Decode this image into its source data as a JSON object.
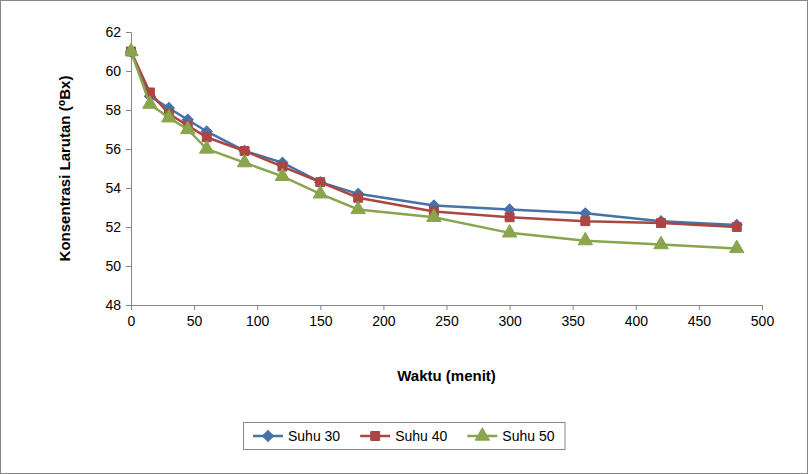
{
  "chart_data": {
    "type": "line",
    "x_label": "Waktu (menit)",
    "y_label": "Konsentrasi Larutan  (⁰Bx)",
    "x": [
      0,
      15,
      30,
      45,
      60,
      90,
      120,
      150,
      180,
      240,
      300,
      360,
      420,
      480
    ],
    "series": [
      {
        "name": "Suhu 30",
        "color": "#4572A7",
        "marker": "diamond",
        "line_style": "solid",
        "values": [
          61.0,
          58.7,
          58.1,
          57.5,
          56.9,
          55.9,
          55.3,
          54.3,
          53.7,
          53.1,
          52.9,
          52.7,
          52.3,
          52.1
        ]
      },
      {
        "name": "Suhu 40",
        "color": "#AA4643",
        "marker": "square",
        "line_style": "solid",
        "values": [
          61.0,
          58.9,
          57.8,
          57.2,
          56.6,
          55.9,
          55.1,
          54.3,
          53.5,
          52.8,
          52.5,
          52.3,
          52.2,
          52.0
        ]
      },
      {
        "name": "Suhu 50",
        "color": "#89A54E",
        "marker": "triangle",
        "line_style": "solid",
        "values": [
          61.0,
          58.3,
          57.6,
          57.0,
          56.0,
          55.3,
          54.6,
          53.7,
          52.9,
          52.5,
          51.7,
          51.3,
          51.1,
          50.9
        ]
      }
    ],
    "xlim": [
      0,
      500
    ],
    "xticks": [
      0,
      50,
      100,
      150,
      200,
      250,
      300,
      350,
      400,
      450,
      500
    ],
    "ylim": [
      48,
      62
    ],
    "yticks": [
      48,
      50,
      52,
      54,
      56,
      58,
      60,
      62
    ],
    "grid": false,
    "legend": "bottom"
  }
}
